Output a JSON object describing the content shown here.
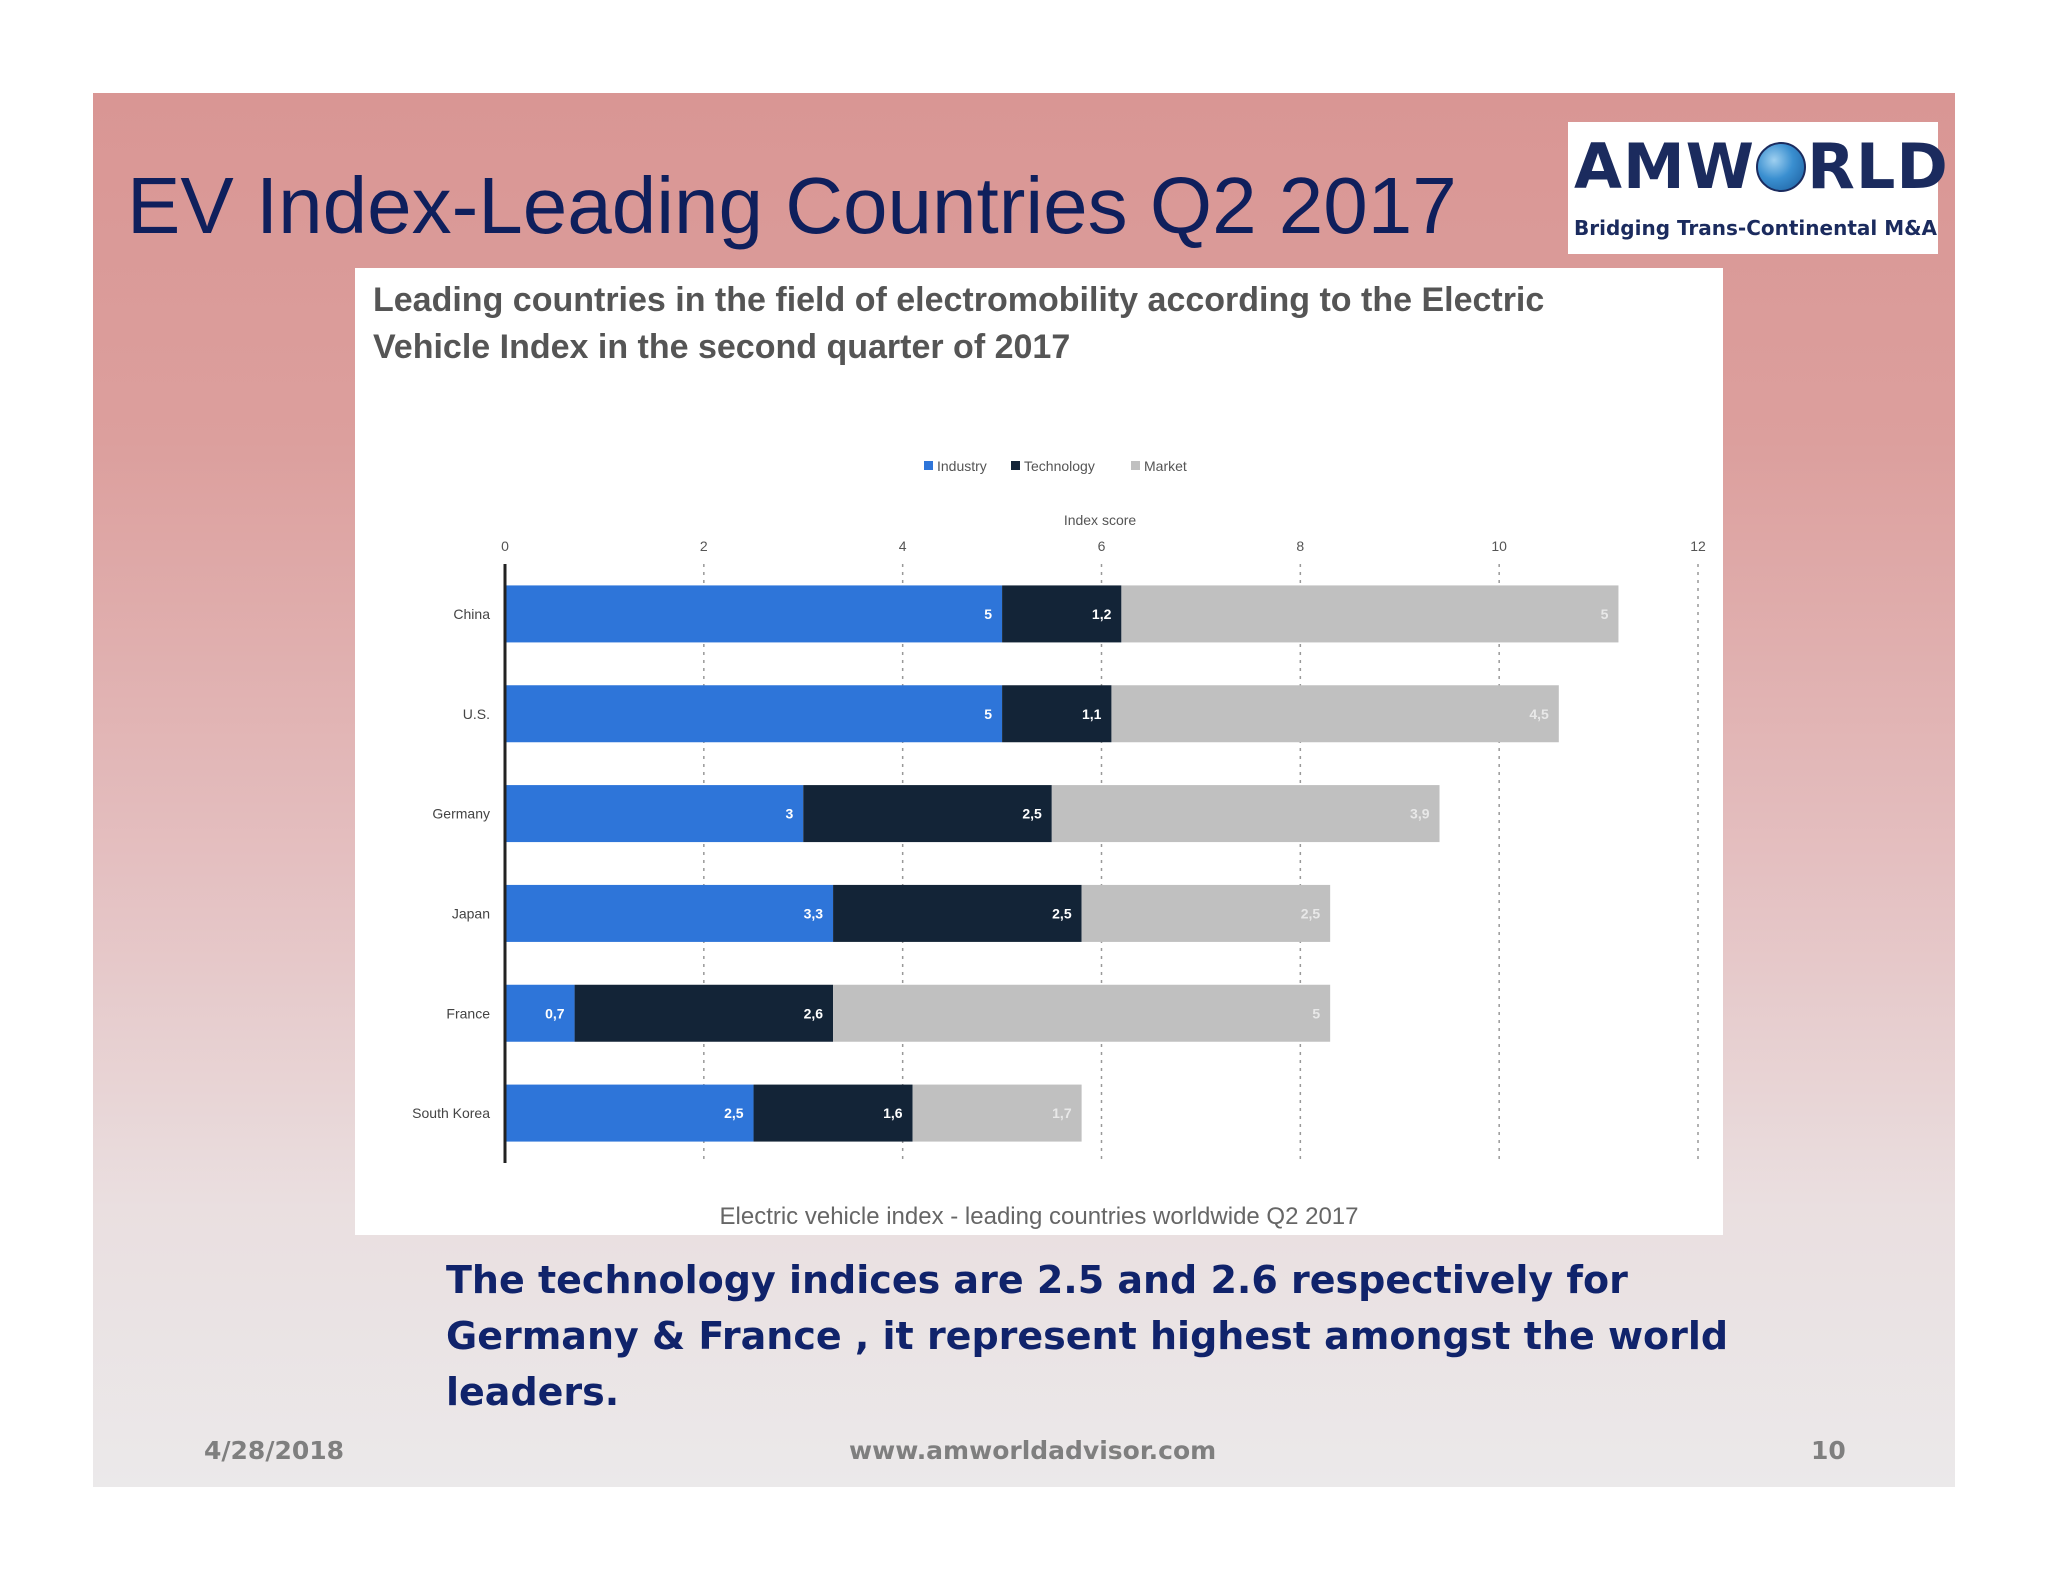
{
  "slide": {
    "title": "EV Index-Leading Countries Q2 2017",
    "caption": "The technology indices are 2.5 and 2.6 respectively for Germany & France , it represent highest amongst the world leaders.",
    "footer": {
      "date": "4/28/2018",
      "url": "www.amworldadvisor.com",
      "page": "10"
    }
  },
  "logo": {
    "word_start": "AMW",
    "word_end": "RLD",
    "tagline": "Bridging Trans-Continental M&A"
  },
  "colors": {
    "industry": "#2e75d9",
    "technology": "#132437",
    "market": "#c0c0c0",
    "title_text": "#0f1f5c",
    "caption_text": "#10236b"
  },
  "chart_data": {
    "type": "bar",
    "orientation": "horizontal",
    "stacked": true,
    "title": "Leading countries in the field of electromobility according to the Electric Vehicle Index in the second quarter of 2017",
    "title_lines": [
      "Leading countries in the field of electromobility according to the Electric",
      "Vehicle Index in the second quarter of 2017"
    ],
    "xlabel": "Index score",
    "ylabel": "",
    "xlim": [
      0,
      12
    ],
    "ticks": [
      "0",
      "2",
      "4",
      "6",
      "8",
      "10",
      "12"
    ],
    "grid": true,
    "legend_position": "top-center",
    "categories": [
      "China",
      "U.S.",
      "Germany",
      "Japan",
      "France",
      "South Korea"
    ],
    "series": [
      {
        "name": "Industry",
        "values": [
          5,
          5,
          3,
          3.3,
          0.7,
          2.5
        ],
        "labels": [
          "5",
          "5",
          "3",
          "3,3",
          "0,7",
          "2,5"
        ]
      },
      {
        "name": "Technology",
        "values": [
          1.2,
          1.1,
          2.5,
          2.5,
          2.6,
          1.6
        ],
        "labels": [
          "1,2",
          "1,1",
          "2,5",
          "2,5",
          "2,6",
          "1,6"
        ]
      },
      {
        "name": "Market",
        "values": [
          5,
          4.5,
          3.9,
          2.5,
          5,
          1.7
        ],
        "labels": [
          "5",
          "4,5",
          "3,9",
          "2,5",
          "5",
          "1,7"
        ]
      }
    ],
    "footer": "Electric vehicle index - leading countries worldwide Q2 2017"
  }
}
